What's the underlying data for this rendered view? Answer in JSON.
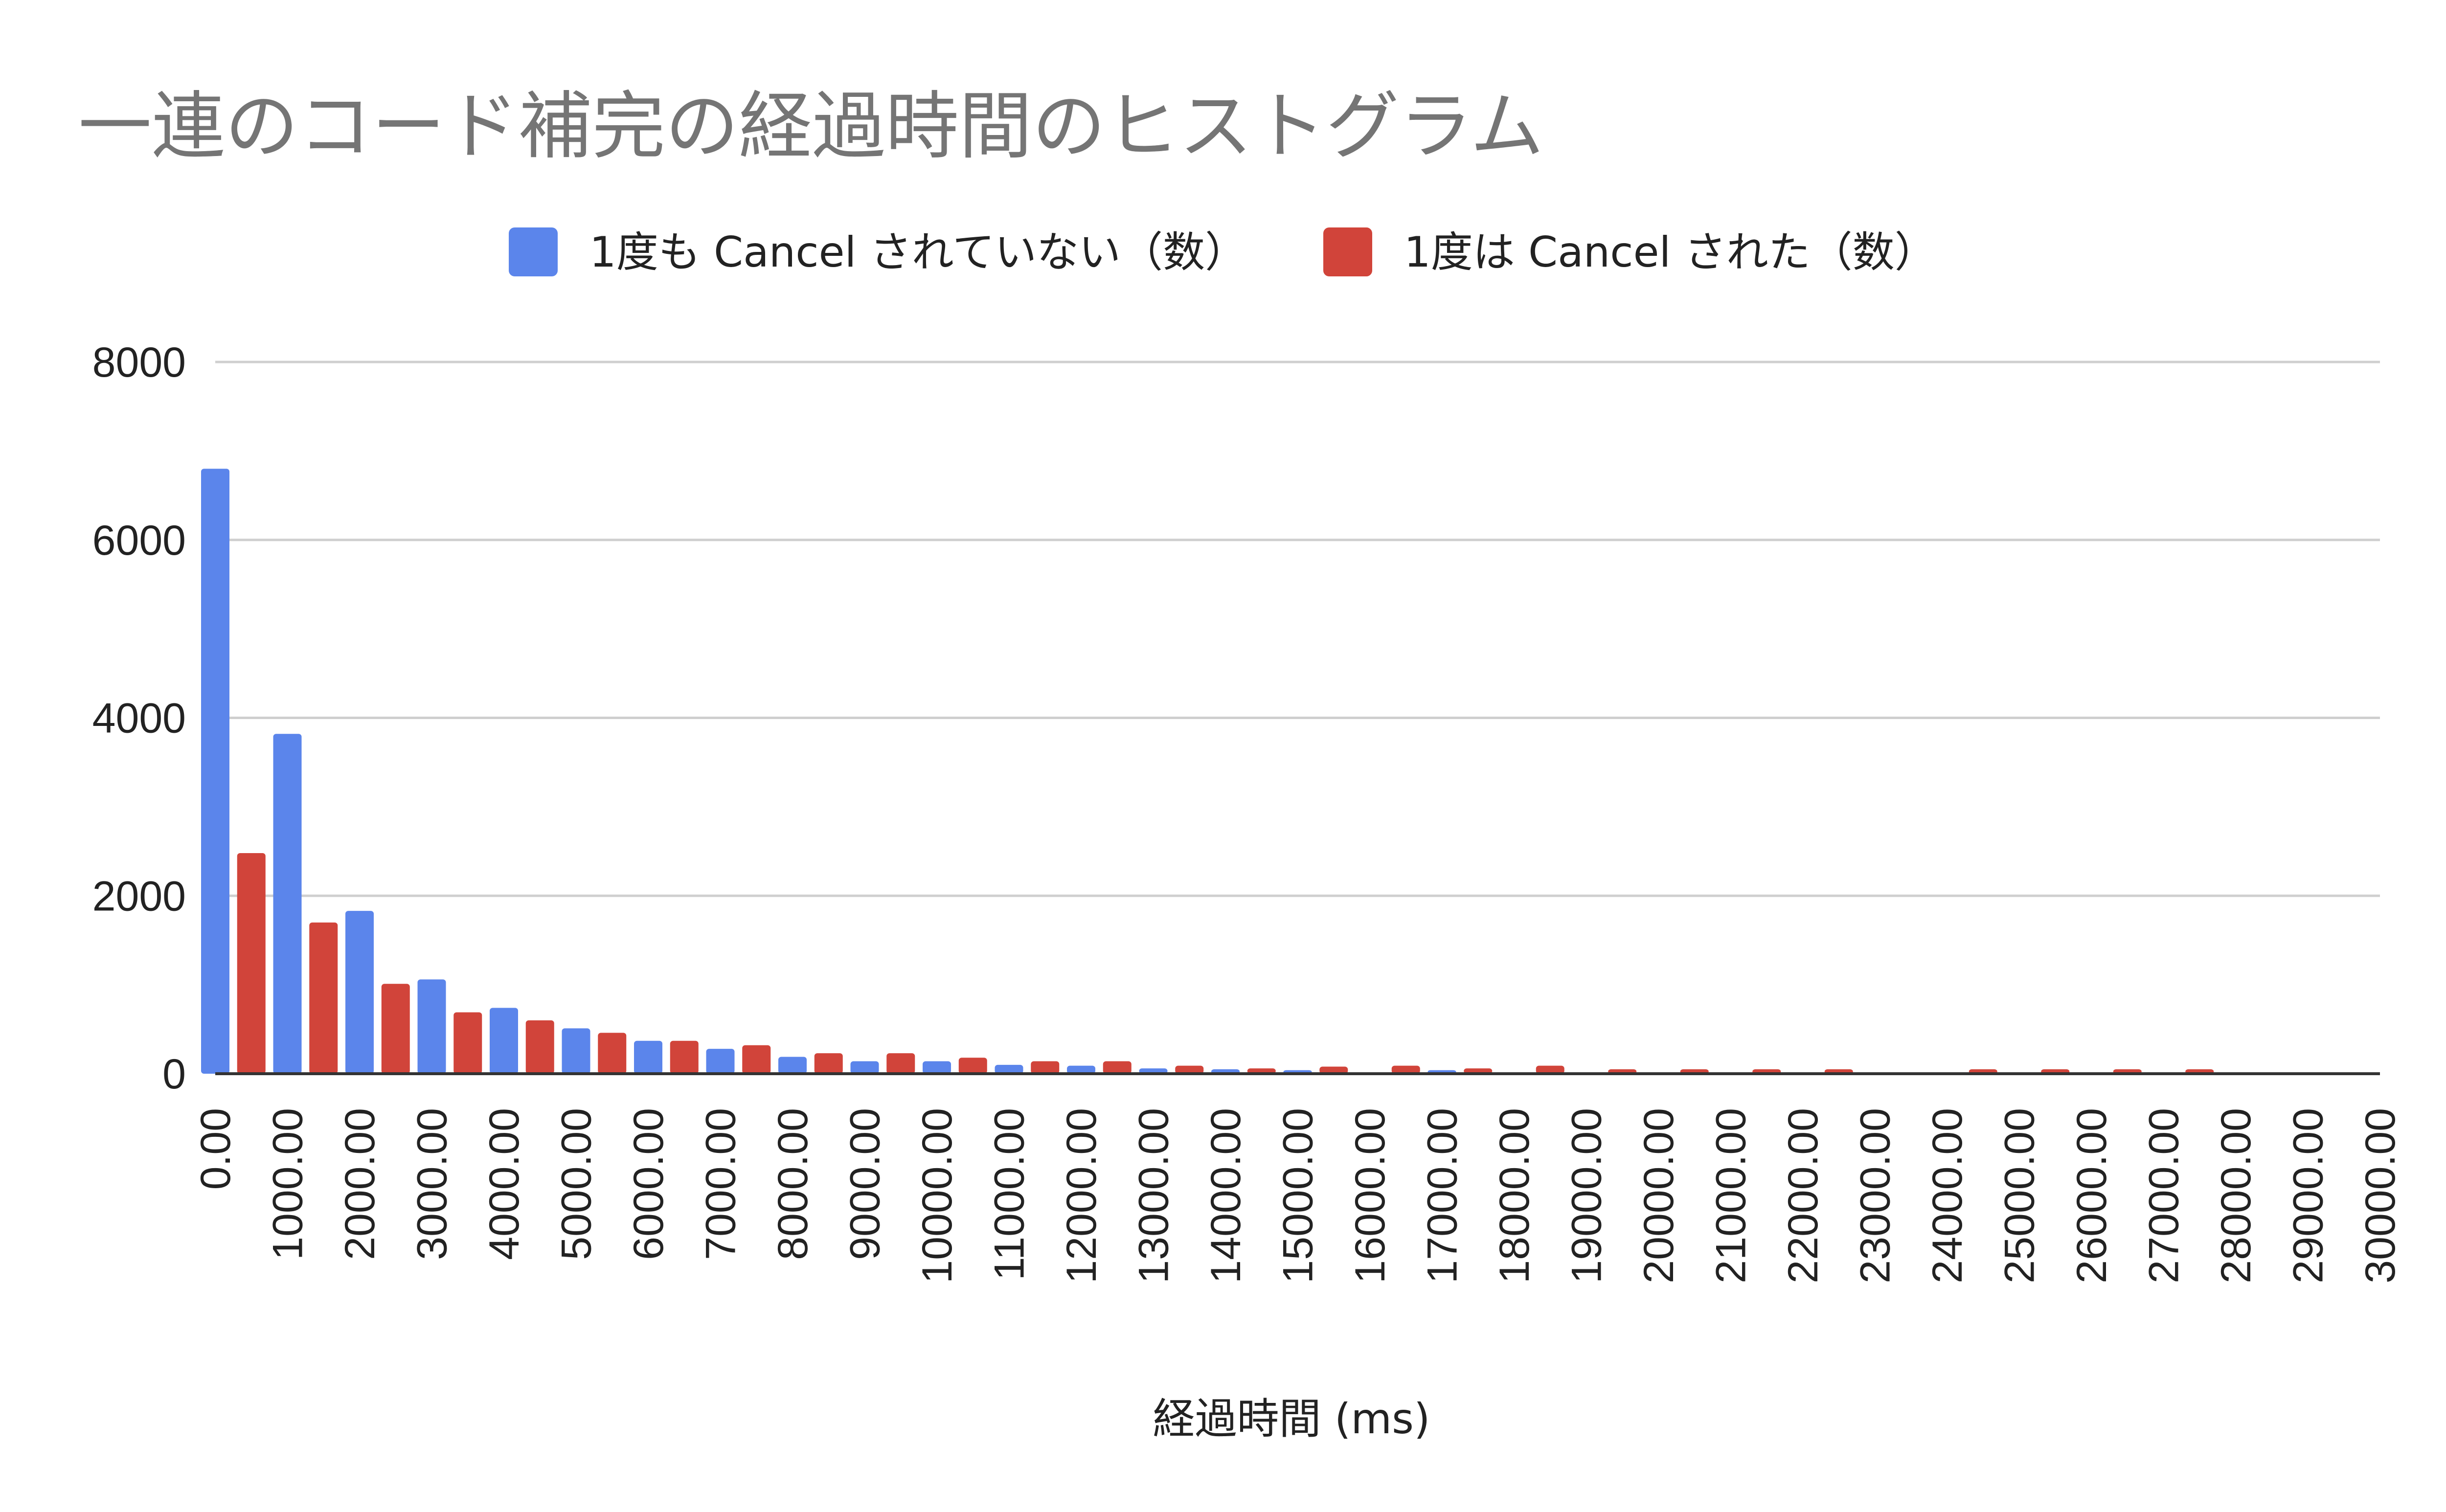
{
  "chart_data": {
    "type": "bar",
    "title": "一連のコード補完の経過時間のヒストグラム",
    "xlabel": "経過時間 (ms)",
    "ylabel": "",
    "ylim": [
      0,
      8000
    ],
    "yticks": [
      0,
      2000,
      4000,
      6000,
      8000
    ],
    "legend_position": "top",
    "grid": true,
    "xticks": [
      "0.00",
      "1000.00",
      "2000.00",
      "3000.00",
      "4000.00",
      "5000.00",
      "6000.00",
      "7000.00",
      "8000.00",
      "9000.00",
      "10000.00",
      "11000.00",
      "12000.00",
      "13000.00",
      "14000.00",
      "15000.00",
      "16000.00",
      "17000.00",
      "18000.00",
      "19000.00",
      "20000.00",
      "21000.00",
      "22000.00",
      "23000.00",
      "24000.00",
      "25000.00",
      "26000.00",
      "27000.00",
      "28000.00",
      "29000.00",
      "30000.00"
    ],
    "series": [
      {
        "name": "1度も Cancel されていない（数）",
        "color": "#5b85eb",
        "x": [
          0,
          1000,
          2000,
          3000,
          4000,
          5000,
          6000,
          7000,
          8000,
          9000,
          10000,
          11000,
          12000,
          13000,
          14000,
          15000,
          17000
        ],
        "values": [
          6800,
          3820,
          1830,
          1060,
          740,
          510,
          370,
          280,
          190,
          140,
          140,
          100,
          90,
          60,
          50,
          40,
          40
        ]
      },
      {
        "name": "1度は Cancel された（数）",
        "color": "#d1443a",
        "x": [
          500,
          1500,
          2500,
          3500,
          4500,
          5500,
          6500,
          7500,
          8500,
          9500,
          10500,
          11500,
          12500,
          13500,
          14500,
          15500,
          16500,
          17500,
          18500,
          19500,
          20500,
          21500,
          22500,
          24500,
          25500,
          26500,
          27500
        ],
        "values": [
          2480,
          1700,
          1010,
          690,
          600,
          460,
          370,
          320,
          230,
          230,
          180,
          140,
          140,
          90,
          60,
          80,
          90,
          60,
          90,
          50,
          50,
          50,
          50,
          50,
          50,
          50,
          50
        ]
      }
    ]
  }
}
